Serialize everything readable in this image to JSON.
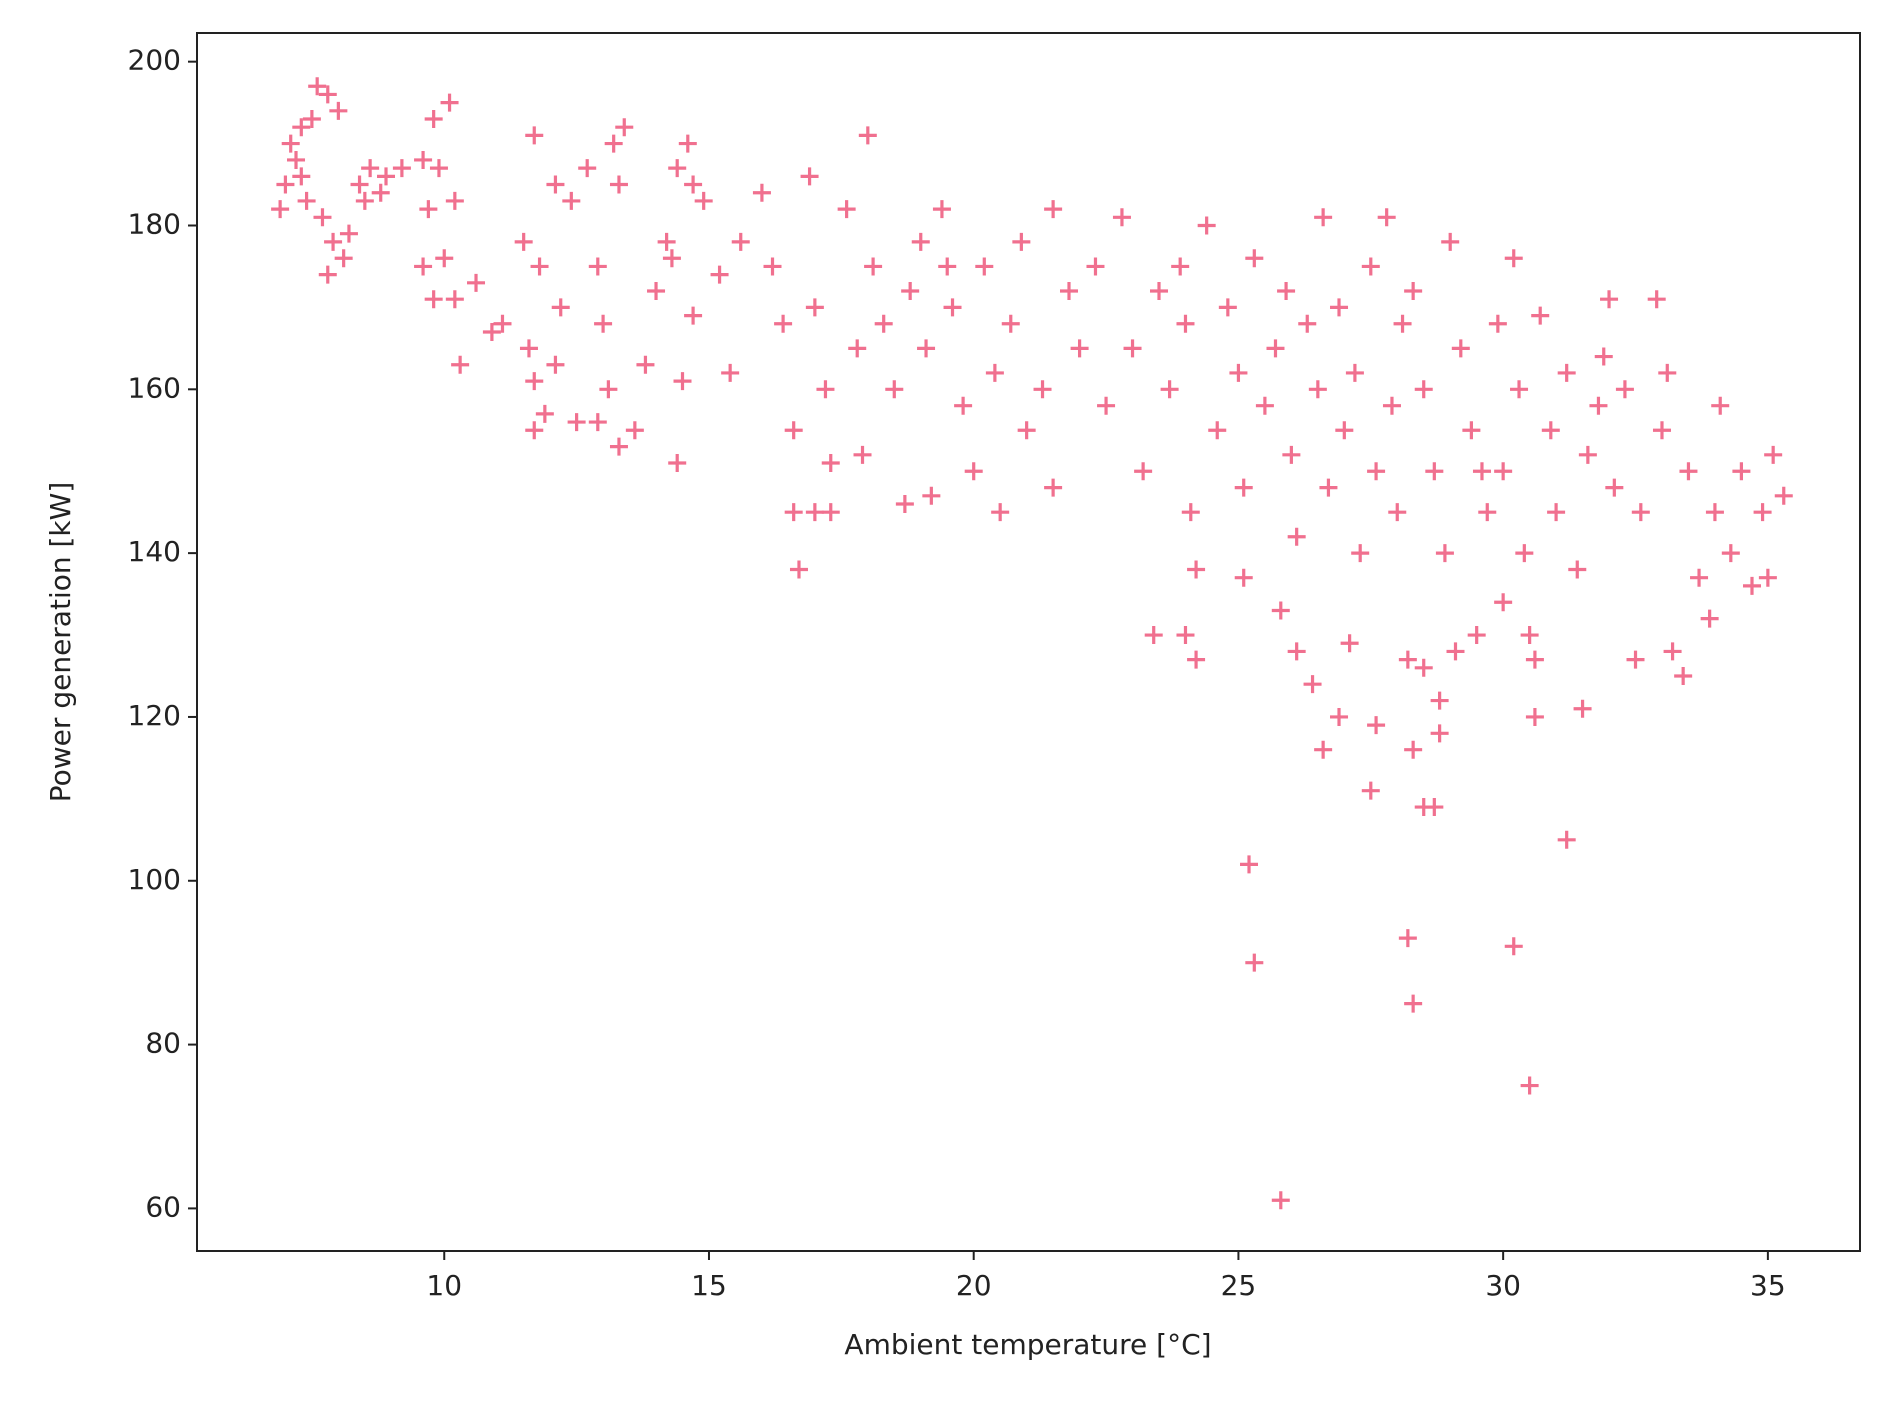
{
  "chart_data": {
    "type": "scatter",
    "x_label": "Ambient temperature [°C]",
    "y_label": "Power generation [kW]",
    "color": "#f0708f",
    "marker": "+",
    "xlim": [
      5.33,
      36.74
    ],
    "xticks": [
      10,
      15,
      20,
      25,
      30,
      35
    ],
    "ylim": [
      54.8,
      203.5
    ],
    "yticks": [
      60,
      80,
      100,
      120,
      140,
      160,
      180,
      200
    ],
    "grid": false,
    "x": [
      6.9,
      7.0,
      7.1,
      7.2,
      7.3,
      7.5,
      7.6,
      7.8,
      8.0,
      7.4,
      7.7,
      7.9,
      8.1,
      7.8,
      8.2,
      7.3,
      8.4,
      8.6,
      8.9,
      9.2,
      8.5,
      8.8,
      9.6,
      9.9,
      9.8,
      10.1,
      10.2,
      9.7,
      9.6,
      9.8,
      10.2,
      10.0,
      10.3,
      10.6,
      10.9,
      11.1,
      11.5,
      11.8,
      11.6,
      11.7,
      11.9,
      12.1,
      12.2,
      12.4,
      12.7,
      12.9,
      13.0,
      13.2,
      13.4,
      13.3,
      13.1,
      12.9,
      13.3,
      13.6,
      13.8,
      14.0,
      14.2,
      14.4,
      14.6,
      14.7,
      14.5,
      14.4,
      14.9,
      14.3,
      15.2,
      15.4,
      15.6,
      12.1,
      11.7,
      11.7,
      12.5,
      14.7,
      16.0,
      16.2,
      16.4,
      16.6,
      16.6,
      16.7,
      16.9,
      17.0,
      17.2,
      17.3,
      17.3,
      17.6,
      17.8,
      17.9,
      18.0,
      18.1,
      18.3,
      18.5,
      18.8,
      19.0,
      19.1,
      19.2,
      19.4,
      19.6,
      19.8,
      20.0,
      20.2,
      20.4,
      20.5,
      20.7,
      21.0,
      21.3,
      21.5,
      21.5,
      21.8,
      22.0,
      22.3,
      22.5,
      17.0,
      18.7,
      19.5,
      20.9,
      22.8,
      23.0,
      23.2,
      23.5,
      23.7,
      23.9,
      24.0,
      24.1,
      24.2,
      24.4,
      24.6,
      24.8,
      25.0,
      25.1,
      25.3,
      25.5,
      25.7,
      25.9,
      26.0,
      26.1,
      26.3,
      26.5,
      26.6,
      26.7,
      26.9,
      27.0,
      27.2,
      27.3,
      27.5,
      27.6,
      27.8,
      27.9,
      28.0,
      28.1,
      23.4,
      24.0,
      24.2,
      25.1,
      25.8,
      26.1,
      26.4,
      26.6,
      26.9,
      27.1,
      27.6,
      27.5,
      28.2,
      28.3,
      28.5,
      28.5,
      28.7,
      28.8,
      28.8,
      25.2,
      25.3,
      28.2,
      28.3,
      30.2,
      30.5,
      25.8,
      31.2,
      30.6,
      31.5,
      30.6,
      28.3,
      28.5,
      28.7,
      28.9,
      29.0,
      29.2,
      29.4,
      29.5,
      29.7,
      29.9,
      30.0,
      30.2,
      30.3,
      30.4,
      30.5,
      30.7,
      30.9,
      31.0,
      31.2,
      31.4,
      31.6,
      31.8,
      32.0,
      32.1,
      32.3,
      32.5,
      32.6,
      32.9,
      33.0,
      33.1,
      33.2,
      33.4,
      33.5,
      33.7,
      33.9,
      34.0,
      34.1,
      34.3,
      34.5,
      34.7,
      34.9,
      35.1,
      35.3,
      35.0,
      29.1,
      30.0,
      29.6,
      31.9
    ],
    "values": [
      182,
      185,
      190,
      188,
      192,
      193,
      197,
      196,
      194,
      183,
      181,
      178,
      176,
      174,
      179,
      186,
      185,
      187,
      186,
      187,
      183,
      184,
      188,
      187,
      193,
      195,
      183,
      182,
      175,
      171,
      171,
      176,
      163,
      173,
      167,
      168,
      178,
      175,
      165,
      161,
      157,
      163,
      170,
      183,
      187,
      175,
      168,
      190,
      192,
      185,
      160,
      156,
      153,
      155,
      163,
      172,
      178,
      187,
      190,
      185,
      161,
      151,
      183,
      176,
      174,
      162,
      178,
      185,
      191,
      155,
      156,
      169,
      184,
      175,
      168,
      155,
      145,
      138,
      186,
      170,
      160,
      151,
      145,
      182,
      165,
      152,
      191,
      175,
      168,
      160,
      172,
      178,
      165,
      147,
      182,
      170,
      158,
      150,
      175,
      162,
      145,
      168,
      155,
      160,
      182,
      148,
      172,
      165,
      175,
      158,
      145,
      146,
      175,
      178,
      181,
      165,
      150,
      172,
      160,
      175,
      168,
      145,
      138,
      180,
      155,
      170,
      162,
      148,
      176,
      158,
      165,
      172,
      152,
      142,
      168,
      160,
      181,
      148,
      170,
      155,
      162,
      140,
      175,
      150,
      181,
      158,
      145,
      168,
      130,
      130,
      127,
      137,
      133,
      128,
      124,
      116,
      120,
      129,
      119,
      111,
      127,
      116,
      126,
      109,
      109,
      122,
      118,
      102,
      90,
      93,
      85,
      92,
      75,
      61,
      105,
      120,
      121,
      127,
      172,
      160,
      150,
      140,
      178,
      165,
      155,
      130,
      145,
      168,
      150,
      176,
      160,
      140,
      130,
      169,
      155,
      145,
      162,
      138,
      152,
      158,
      171,
      148,
      160,
      127,
      145,
      171,
      155,
      162,
      128,
      125,
      150,
      137,
      132,
      145,
      158,
      140,
      150,
      136,
      145,
      152,
      147,
      137,
      128,
      134,
      150,
      164
    ]
  }
}
